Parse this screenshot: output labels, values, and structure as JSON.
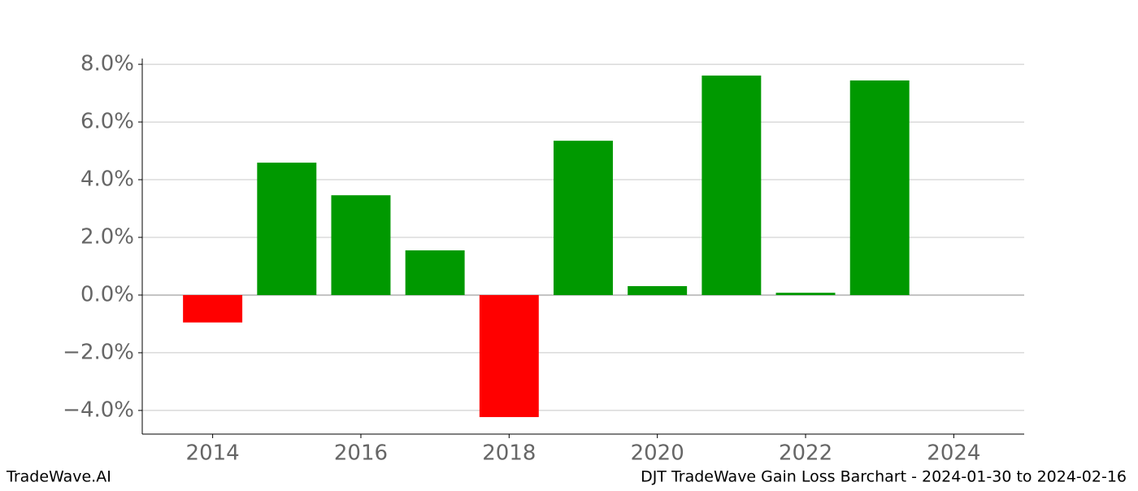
{
  "chart_data": {
    "type": "bar",
    "x": [
      2014,
      2015,
      2016,
      2017,
      2018,
      2019,
      2020,
      2021,
      2022,
      2023
    ],
    "values": [
      -0.95,
      4.59,
      3.46,
      1.55,
      -4.23,
      5.35,
      0.31,
      7.61,
      0.08,
      7.44
    ],
    "colors": [
      "#ff0000",
      "#009900",
      "#009900",
      "#009900",
      "#ff0000",
      "#009900",
      "#009900",
      "#009900",
      "#009900",
      "#009900"
    ],
    "bar_width": 0.8,
    "xlim": [
      2013.05,
      2024.95
    ],
    "xticks": [
      2014,
      2016,
      2018,
      2020,
      2022,
      2024
    ],
    "ylim": [
      -4.82,
      8.2
    ],
    "yticks": [
      {
        "value": -4,
        "label": "−4.0%"
      },
      {
        "value": -2,
        "label": "−2.0%"
      },
      {
        "value": 0,
        "label": "0.0%"
      },
      {
        "value": 2,
        "label": "2.0%"
      },
      {
        "value": 4,
        "label": "4.0%"
      },
      {
        "value": 6,
        "label": "6.0%"
      },
      {
        "value": 8,
        "label": "8.0%"
      }
    ],
    "grid": true,
    "footer_left": "TradeWave.AI",
    "footer_right": "DJT TradeWave Gain Loss Barchart - 2024-01-30 to 2024-02-16"
  }
}
